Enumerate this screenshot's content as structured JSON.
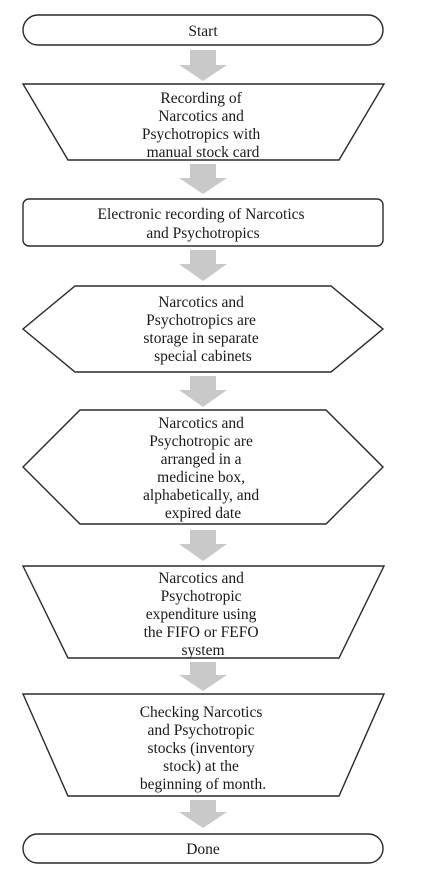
{
  "flowchart": {
    "start": "Start",
    "step1": [
      "Recording of",
      "Narcotics and",
      "Psychotropics with",
      "manual stock card"
    ],
    "step2": [
      "Electronic recording of Narcotics",
      "and Psychotropics"
    ],
    "step3": [
      "Narcotics and",
      "Psychotropics are",
      "storage in separate",
      "special cabinets"
    ],
    "step4": [
      "Narcotics and",
      "Psychotropic are",
      "arranged in a",
      "medicine box,",
      "alphabetically, and",
      "expired date"
    ],
    "step5": [
      "Narcotics and",
      "Psychotropic",
      "expenditure using",
      "the FIFO or FEFO",
      "system"
    ],
    "step6": [
      "Checking Narcotics",
      "and Psychotropic",
      "stocks (inventory",
      "stock) at the",
      "beginning of month."
    ],
    "done": "Done"
  },
  "colors": {
    "arrow": "#c9c9c9",
    "stroke": "#2a2a2a"
  }
}
